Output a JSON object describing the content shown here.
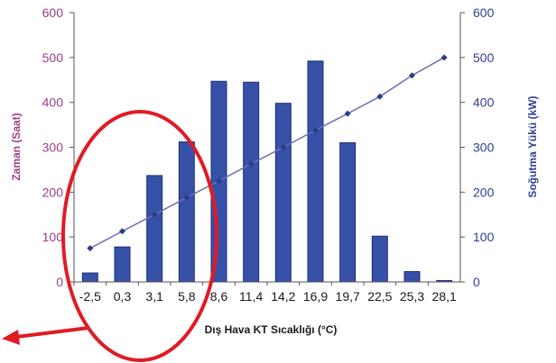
{
  "chart_data": {
    "type": "bar",
    "categories": [
      "-2,5",
      "0,3",
      "3,1",
      "5,8",
      "8,6",
      "11,4",
      "14,2",
      "16,9",
      "19,7",
      "22,5",
      "25,3",
      "28,1"
    ],
    "series": [
      {
        "type": "bar",
        "axis": "left",
        "values": [
          20,
          78,
          237,
          312,
          447,
          445,
          398,
          492,
          310,
          102,
          23,
          3
        ]
      },
      {
        "type": "line",
        "axis": "right",
        "values": [
          75,
          113,
          150,
          188,
          225,
          263,
          300,
          338,
          375,
          413,
          460,
          500
        ]
      }
    ],
    "xlabel": "Dış Hava KT Sıcaklığı (°C)",
    "ylabel_left": "Zaman (Saat)",
    "ylabel_right": "Soğutma Yükü (kW)",
    "ylim_left": [
      0,
      600
    ],
    "ylim_right": [
      0,
      600
    ],
    "yticks": [
      0,
      100,
      200,
      300,
      400,
      500,
      600
    ],
    "grid": false,
    "legend": "none",
    "colors": {
      "bar": "#3651a8",
      "bar_edge": "#1e2f78",
      "line": "#6a6fb0",
      "marker": "#2a3c8c",
      "left_axis": "#9b3f86",
      "right_axis": "#2f3e96",
      "annotation": "#e01b24"
    },
    "annotations": [
      {
        "type": "ellipse",
        "description": "red ellipse highlighting first categories"
      },
      {
        "type": "arrow",
        "description": "red arrow pointing left"
      }
    ]
  }
}
